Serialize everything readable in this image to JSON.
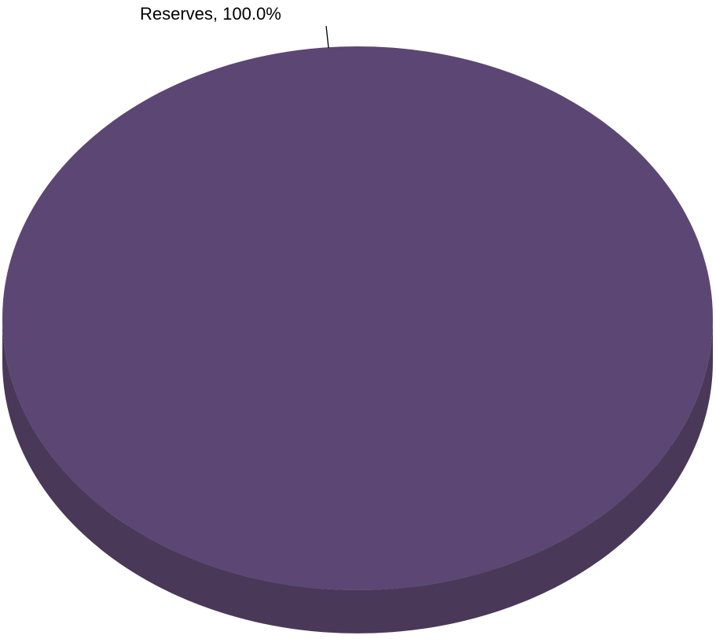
{
  "chart_data": {
    "type": "pie",
    "style": "3d",
    "slices": [
      {
        "name": "Reserves",
        "value": 100.0,
        "label": "Reserves, 100.0%",
        "color": "#5c4673",
        "side_color": "#4a3858"
      }
    ]
  }
}
